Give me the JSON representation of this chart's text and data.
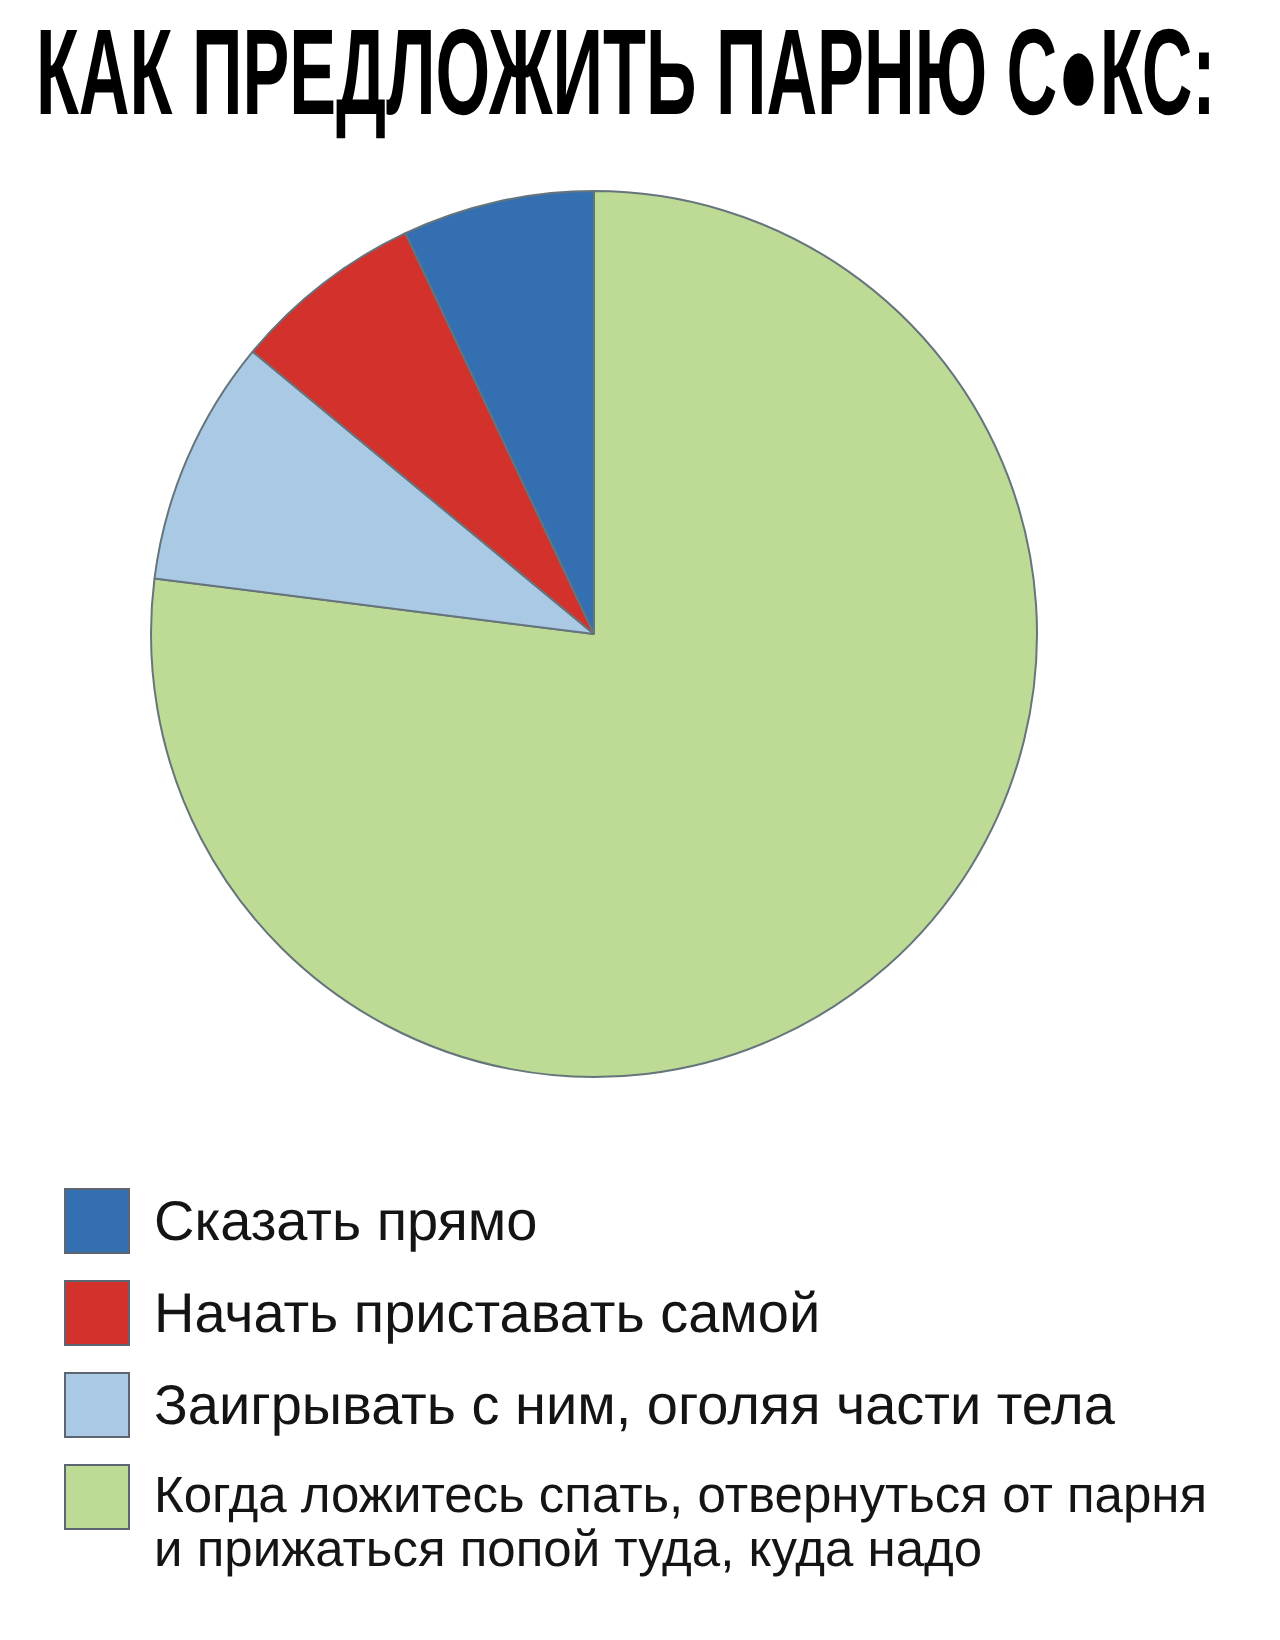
{
  "chart_data": {
    "type": "pie",
    "title": "КАК ПРЕДЛОЖИТЬ ПАРНЮ С●КС:",
    "categories": [
      "Сказать прямо",
      "Начать приставать самой",
      "Заигрывать с ним, оголяя части тела",
      "Когда ложитесь спать, отвернуться от парня и прижаться попой туда, куда надо"
    ],
    "values": [
      7,
      7,
      9,
      77
    ],
    "colors": [
      "#3470b1",
      "#d3312b",
      "#aac9e4",
      "#bddb94"
    ],
    "legend": "bottom"
  }
}
